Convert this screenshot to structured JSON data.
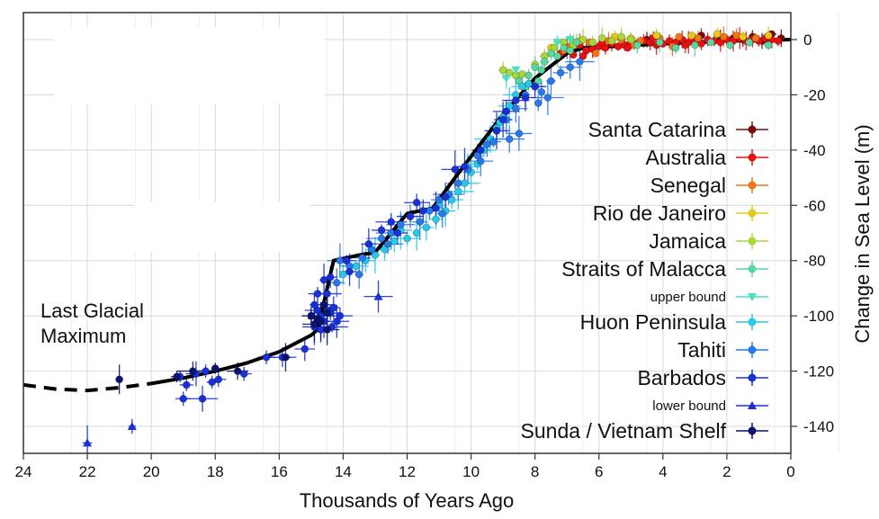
{
  "chart_data": {
    "type": "scatter",
    "xlabel": "Thousands of Years Ago",
    "ylabel": "Change in Sea Level (m)",
    "xlim": [
      24,
      0
    ],
    "ylim": [
      -150,
      10
    ],
    "x_reversed": true,
    "y_axis_side": "right",
    "grid": true,
    "x_ticks": [
      24,
      22,
      20,
      18,
      16,
      14,
      12,
      10,
      8,
      6,
      4,
      2,
      0
    ],
    "y_ticks": [
      0,
      -20,
      -40,
      -60,
      -80,
      -100,
      -120,
      -140
    ],
    "annotation": "Last Glacial\nMaximum",
    "legend_position": "right",
    "legend": [
      {
        "label": "Santa Catarina",
        "color": "#7a0c0c",
        "marker": "circle"
      },
      {
        "label": "Australia",
        "color": "#e81010",
        "marker": "circle"
      },
      {
        "label": "Senegal",
        "color": "#f07418",
        "marker": "circle"
      },
      {
        "label": "Rio de Janeiro",
        "color": "#e8c818",
        "marker": "circle"
      },
      {
        "label": "Jamaica",
        "color": "#a8d838",
        "marker": "circle"
      },
      {
        "label": "Straits of Malacca",
        "color": "#58d8a0",
        "marker": "circle"
      },
      {
        "label": "upper bound",
        "color": "#48e0c0",
        "marker": "triangle-down",
        "small": true
      },
      {
        "label": "Huon Peninsula",
        "color": "#28c8e8",
        "marker": "circle"
      },
      {
        "label": "Tahiti",
        "color": "#2878e8",
        "marker": "circle"
      },
      {
        "label": "Barbados",
        "color": "#1830d8",
        "marker": "circle"
      },
      {
        "label": "lower bound",
        "color": "#1830d8",
        "marker": "triangle-up",
        "small": true
      },
      {
        "label": "Sunda / Vietnam Shelf",
        "color": "#0a1470",
        "marker": "circle"
      }
    ],
    "trend_dashed": [
      [
        24,
        -125
      ],
      [
        23,
        -126.5
      ],
      [
        22,
        -127
      ],
      [
        21,
        -126
      ],
      [
        20,
        -124.5
      ]
    ],
    "trend_solid": [
      [
        20,
        -124.5
      ],
      [
        19,
        -122.5
      ],
      [
        18,
        -120
      ],
      [
        17,
        -117
      ],
      [
        16,
        -113
      ],
      [
        15,
        -107
      ],
      [
        14.8,
        -105
      ],
      [
        14.3,
        -80
      ],
      [
        13.5,
        -78
      ],
      [
        13,
        -77
      ],
      [
        12,
        -63
      ],
      [
        11.2,
        -61
      ],
      [
        10.5,
        -50
      ],
      [
        9,
        -27
      ],
      [
        8,
        -14
      ],
      [
        7,
        -5
      ],
      [
        6.5,
        -3
      ],
      [
        4,
        -1.5
      ],
      [
        2,
        -0.5
      ],
      [
        0,
        0
      ]
    ],
    "series": [
      {
        "name": "Santa Catarina",
        "color": "#7a0c0c",
        "points": [
          [
            2.8,
            1.5
          ],
          [
            1.8,
            0.5
          ],
          [
            1.2,
            1
          ],
          [
            0.6,
            2
          ],
          [
            0.9,
            -0.5
          ],
          [
            3.5,
            -0.5
          ],
          [
            2.2,
            0.5
          ],
          [
            1.5,
            0
          ],
          [
            0.3,
            0.5
          ],
          [
            4.5,
            0
          ]
        ]
      },
      {
        "name": "Australia",
        "color": "#e81010",
        "points": [
          [
            7.2,
            -5
          ],
          [
            7,
            -3
          ],
          [
            6.8,
            -5.5
          ],
          [
            6.6,
            -2
          ],
          [
            6.4,
            -4
          ],
          [
            6.2,
            -3.5
          ],
          [
            6,
            -2.5
          ],
          [
            5.8,
            -3
          ],
          [
            5.6,
            -1.5
          ],
          [
            5.4,
            -2.5
          ],
          [
            5.2,
            -2
          ],
          [
            5,
            -1
          ],
          [
            4.8,
            -1.5
          ],
          [
            4.6,
            -0.5
          ],
          [
            4.4,
            -1
          ],
          [
            4.2,
            -2
          ],
          [
            4,
            -1.5
          ],
          [
            3.8,
            -0.5
          ],
          [
            3.6,
            -1
          ],
          [
            3.4,
            0
          ],
          [
            3.2,
            -1
          ],
          [
            3,
            -0.5
          ],
          [
            2.8,
            -1.5
          ],
          [
            2.6,
            0
          ],
          [
            2.4,
            -0.5
          ],
          [
            2.2,
            -1
          ],
          [
            2,
            0
          ],
          [
            1.8,
            -0.5
          ],
          [
            1.6,
            0.5
          ],
          [
            1.4,
            -0.5
          ],
          [
            1.2,
            0
          ],
          [
            1,
            -0.5
          ],
          [
            0.8,
            0.5
          ],
          [
            0.6,
            0
          ],
          [
            0.4,
            -0.5
          ],
          [
            6.5,
            -6
          ],
          [
            5.9,
            -1
          ],
          [
            5.1,
            -3
          ],
          [
            4.3,
            0.5
          ],
          [
            3.3,
            -2
          ]
        ]
      },
      {
        "name": "Senegal",
        "color": "#f07418",
        "points": [
          [
            7.1,
            -4
          ],
          [
            6.9,
            -2.5
          ],
          [
            6.3,
            -1
          ],
          [
            5.7,
            -0.5
          ],
          [
            5.3,
            0
          ],
          [
            4.7,
            -0.5
          ],
          [
            4.1,
            0.5
          ],
          [
            3.5,
            1
          ],
          [
            2.9,
            0.5
          ],
          [
            2.1,
            1
          ],
          [
            1.7,
            1.5
          ],
          [
            1.1,
            0.5
          ],
          [
            6.1,
            -5
          ],
          [
            4.9,
            -2
          ],
          [
            3.7,
            -2.5
          ]
        ]
      },
      {
        "name": "Rio de Janeiro",
        "color": "#e8c818",
        "points": [
          [
            7.5,
            -3
          ],
          [
            6.8,
            -1
          ],
          [
            5.5,
            1
          ],
          [
            4.2,
            1.5
          ],
          [
            3.1,
            1.5
          ],
          [
            2.3,
            2
          ],
          [
            1.5,
            1
          ],
          [
            0.7,
            1.5
          ],
          [
            6.6,
            -0.5
          ],
          [
            5,
            0.5
          ]
        ]
      },
      {
        "name": "Jamaica",
        "color": "#a8d838",
        "points": [
          [
            8.8,
            -12
          ],
          [
            8.6,
            -13
          ],
          [
            8.4,
            -12.5
          ],
          [
            8,
            -9
          ],
          [
            7.7,
            -6
          ],
          [
            7.4,
            -3
          ],
          [
            7.1,
            -1
          ],
          [
            6.8,
            -2
          ],
          [
            6.5,
            0
          ],
          [
            6.2,
            -1
          ],
          [
            5.9,
            0.5
          ],
          [
            5.6,
            -0.5
          ],
          [
            5.3,
            1
          ],
          [
            5,
            0
          ],
          [
            9,
            -11
          ]
        ]
      },
      {
        "name": "Straits of Malacca",
        "color": "#58d8a0",
        "points": [
          [
            8.2,
            -13
          ],
          [
            8,
            -10
          ],
          [
            7.9,
            -15
          ],
          [
            7.7,
            -8
          ],
          [
            7.5,
            -5
          ],
          [
            7.3,
            -6
          ],
          [
            7.1,
            -3
          ],
          [
            6.9,
            -4
          ],
          [
            6.7,
            -1
          ],
          [
            8.5,
            -15
          ],
          [
            8.3,
            -17
          ],
          [
            7.8,
            -11
          ],
          [
            3,
            -2
          ],
          [
            2.5,
            -1
          ],
          [
            1.9,
            -2
          ],
          [
            1.3,
            -1
          ],
          [
            0.7,
            -2
          ],
          [
            4.8,
            -2
          ],
          [
            4.1,
            -1
          ],
          [
            3.6,
            -3
          ]
        ]
      },
      {
        "name": "upper bound",
        "color": "#48e0c0",
        "marker": "triangle-down",
        "points": [
          [
            8.9,
            -14
          ],
          [
            8.6,
            -11
          ],
          [
            7.3,
            -1
          ],
          [
            6.9,
            0
          ]
        ]
      },
      {
        "name": "Huon Peninsula",
        "color": "#28c8e8",
        "points": [
          [
            14,
            -85
          ],
          [
            13.6,
            -82
          ],
          [
            13.3,
            -80
          ],
          [
            13,
            -78
          ],
          [
            12.7,
            -76
          ],
          [
            12.4,
            -73
          ],
          [
            12,
            -72
          ],
          [
            11.7,
            -70
          ],
          [
            11.4,
            -68
          ],
          [
            11.1,
            -65
          ],
          [
            10.8,
            -62
          ],
          [
            10.6,
            -58
          ],
          [
            10.4,
            -55
          ],
          [
            10.2,
            -52
          ],
          [
            10,
            -48
          ],
          [
            9.8,
            -45
          ],
          [
            9.6,
            -40
          ],
          [
            9.4,
            -36
          ],
          [
            9.2,
            -32
          ],
          [
            9,
            -28
          ],
          [
            8.8,
            -24
          ],
          [
            8.6,
            -20
          ],
          [
            8.4,
            -17
          ],
          [
            8.2,
            -16
          ],
          [
            12.2,
            -69
          ],
          [
            11,
            -60
          ],
          [
            10.1,
            -46
          ],
          [
            9.1,
            -30
          ]
        ]
      },
      {
        "name": "Tahiti",
        "color": "#2878e8",
        "points": [
          [
            14.1,
            -80
          ],
          [
            13.8,
            -82
          ],
          [
            13.4,
            -79
          ],
          [
            13.1,
            -76
          ],
          [
            12.8,
            -72
          ],
          [
            12.5,
            -70
          ],
          [
            12.2,
            -67
          ],
          [
            11.9,
            -64
          ],
          [
            11.6,
            -66
          ],
          [
            11.3,
            -62
          ],
          [
            11,
            -58
          ],
          [
            10.7,
            -56
          ],
          [
            10.4,
            -52
          ],
          [
            10.1,
            -47
          ],
          [
            9.8,
            -42
          ],
          [
            9.5,
            -38
          ],
          [
            9.2,
            -33
          ],
          [
            8.9,
            -29
          ],
          [
            8.6,
            -25
          ],
          [
            8.3,
            -20
          ],
          [
            8,
            -17
          ],
          [
            7.8,
            -19
          ],
          [
            7.5,
            -15
          ],
          [
            7.2,
            -12
          ],
          [
            6.9,
            -10
          ],
          [
            6.6,
            -8
          ],
          [
            7.9,
            -23
          ],
          [
            7.6,
            -21
          ],
          [
            8.5,
            -34
          ],
          [
            8.8,
            -36
          ],
          [
            9.3,
            -37
          ],
          [
            13.5,
            -85
          ],
          [
            14.2,
            -88
          ],
          [
            12.6,
            -74
          ],
          [
            10.9,
            -63
          ],
          [
            9.7,
            -44
          ]
        ]
      },
      {
        "name": "Barbados",
        "color": "#1830d8",
        "points": [
          [
            19.1,
            -122
          ],
          [
            19,
            -130
          ],
          [
            18.9,
            -125
          ],
          [
            18.6,
            -121
          ],
          [
            18.4,
            -130
          ],
          [
            18.3,
            -120
          ],
          [
            18.1,
            -124
          ],
          [
            17.9,
            -123
          ],
          [
            17.1,
            -121
          ],
          [
            16.4,
            -115
          ],
          [
            15.9,
            -115
          ],
          [
            15.2,
            -112
          ],
          [
            14.9,
            -104
          ],
          [
            14.8,
            -98
          ],
          [
            14.7,
            -100
          ],
          [
            14.6,
            -102
          ],
          [
            14.5,
            -98
          ],
          [
            14.5,
            -92
          ],
          [
            14.4,
            -99
          ],
          [
            14.3,
            -97
          ],
          [
            14.2,
            -102
          ],
          [
            14.1,
            -100
          ],
          [
            14.8,
            -92
          ],
          [
            14.6,
            -87
          ],
          [
            14.4,
            -86
          ],
          [
            13.9,
            -80
          ],
          [
            13.2,
            -74
          ],
          [
            12.8,
            -69
          ],
          [
            12.3,
            -70
          ],
          [
            11.9,
            -64
          ],
          [
            11.5,
            -62
          ],
          [
            11.1,
            -61
          ],
          [
            10.5,
            -47
          ],
          [
            10.2,
            -46
          ],
          [
            9.7,
            -40
          ],
          [
            9.2,
            -33
          ],
          [
            9,
            -29
          ],
          [
            8.9,
            -26
          ],
          [
            8.6,
            -22
          ],
          [
            8.3,
            -21
          ],
          [
            8,
            -17
          ],
          [
            15,
            -100
          ],
          [
            14.9,
            -96
          ],
          [
            14.7,
            -105
          ],
          [
            14.35,
            -104
          ],
          [
            13.8,
            -84
          ],
          [
            12.5,
            -66
          ],
          [
            11.7,
            -59
          ],
          [
            10.8,
            -57
          ]
        ]
      },
      {
        "name": "lower bound",
        "color": "#1830d8",
        "marker": "triangle-up",
        "points": [
          [
            22,
            -146
          ],
          [
            20.6,
            -140
          ],
          [
            12.9,
            -93
          ]
        ]
      },
      {
        "name": "Sunda / Vietnam Shelf",
        "color": "#0a1470",
        "points": [
          [
            21,
            -123
          ],
          [
            19.2,
            -122
          ],
          [
            18.7,
            -120
          ],
          [
            18,
            -119
          ],
          [
            17.3,
            -120
          ],
          [
            15.8,
            -115
          ],
          [
            15,
            -100
          ],
          [
            14.8,
            -101
          ],
          [
            14.6,
            -96
          ],
          [
            14.5,
            -105
          ],
          [
            14.7,
            -102
          ],
          [
            14.9,
            -103
          ],
          [
            14.5,
            -99
          ]
        ]
      }
    ]
  }
}
